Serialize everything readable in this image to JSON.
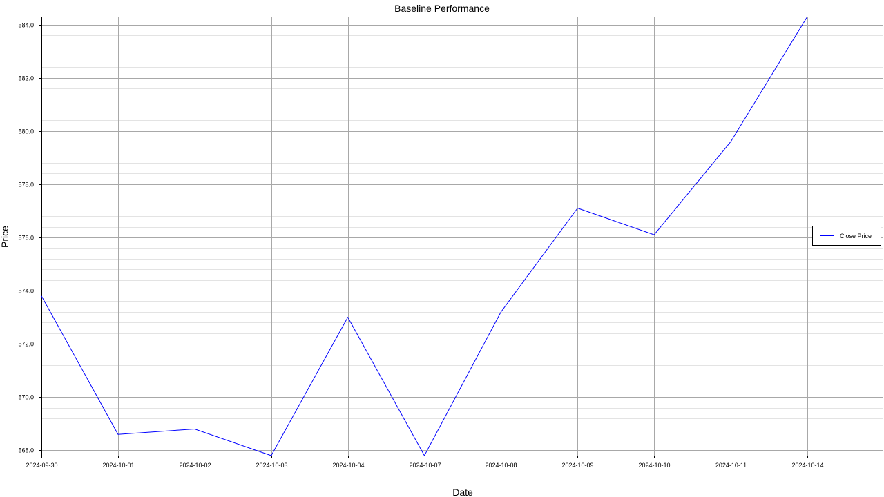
{
  "chart_data": {
    "type": "line",
    "title": "Baseline Performance",
    "xlabel": "Date",
    "ylabel": "Price",
    "categories": [
      "2024-09-30",
      "2024-10-01",
      "2024-10-02",
      "2024-10-03",
      "2024-10-04",
      "2024-10-07",
      "2024-10-08",
      "2024-10-09",
      "2024-10-10",
      "2024-10-11",
      "2024-10-14"
    ],
    "series": [
      {
        "name": "Close Price",
        "color": "#0000ff",
        "values": [
          573.8,
          568.6,
          568.8,
          567.8,
          573.0,
          567.8,
          573.2,
          577.1,
          576.1,
          579.6,
          584.3
        ]
      }
    ],
    "ylim": [
      567.8,
      584.3
    ],
    "yticks": [
      568.0,
      570.0,
      572.0,
      574.0,
      576.0,
      578.0,
      580.0,
      582.0,
      584.0
    ],
    "ytick_labels": [
      "568.0",
      "570.0",
      "572.0",
      "574.0",
      "576.0",
      "578.0",
      "580.0",
      "582.0",
      "584.0"
    ],
    "grid": true,
    "legend_position": "right"
  }
}
